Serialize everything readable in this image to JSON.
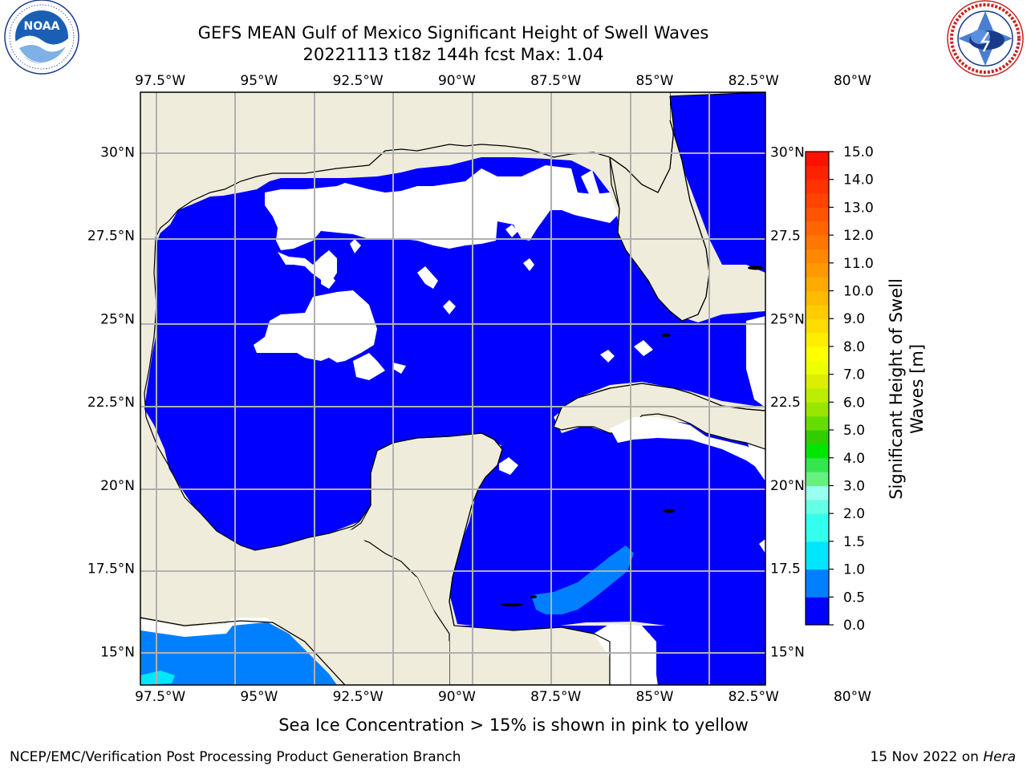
{
  "header": {
    "title_line1": "GEFS MEAN Gulf of Mexico Significant Height of Swell Waves",
    "title_line2": "20221113 t18z 144h fcst   Max: 1.04"
  },
  "logos": {
    "left": {
      "name": "noaa-logo",
      "text": "NOAA",
      "ring_text": "NATIONAL OCEANIC AND ATMOSPHERIC ADMINISTRATION · U.S. DEPARTMENT OF COMMERCE"
    },
    "right": {
      "name": "nws-logo",
      "ring_text": "NATIONAL WEATHER SERVICE"
    }
  },
  "chart_data": {
    "type": "heatmap",
    "title": "GEFS MEAN Gulf of Mexico Significant Height of Swell Waves",
    "subtitle": "20221113 t18z 144h fcst   Max: 1.04",
    "max_value": 1.04,
    "lon_range": [
      -98,
      -82.2
    ],
    "lat_range": [
      14,
      31.8
    ],
    "grid": true,
    "x_ticks": [
      "97.5°W",
      "95°W",
      "92.5°W",
      "90°W",
      "87.5°W",
      "85°W",
      "82.5°W",
      "80°W"
    ],
    "x_tick_values": [
      -97.5,
      -95,
      -92.5,
      -90,
      -87.5,
      -85,
      -82.5,
      -80
    ],
    "y_ticks_left": [
      "30°N",
      "27.5°N",
      "25°N",
      "22.5°N",
      "20°N",
      "17.5°N",
      "15°N"
    ],
    "y_ticks_right": [
      "30°N",
      "27.5",
      "25°N",
      "22.5",
      "20°N",
      "17.5",
      "15°N"
    ],
    "y_tick_values": [
      30,
      27.5,
      25,
      22.5,
      20,
      17.5,
      15
    ],
    "colorbar": {
      "label": "Significant Height of Swell Waves [m]",
      "label_line1": "Significant Height of Swell",
      "label_line2": "Waves [m]",
      "levels": [
        0.0,
        0.5,
        1.0,
        1.5,
        2.0,
        2.5,
        3.0,
        3.5,
        4.0,
        4.5,
        5.0,
        5.5,
        6.0,
        6.5,
        7.0,
        7.5,
        8.0,
        8.5,
        9.0,
        9.5,
        10.0,
        10.5,
        11.0,
        11.5,
        12.0,
        12.5,
        13.0,
        13.5,
        14.0,
        14.5,
        15.0
      ],
      "colors": [
        "#0000ff",
        "#0080ff",
        "#00e6ff",
        "#33ffee",
        "#66ffe6",
        "#99ffee",
        "#66f080",
        "#33e64d",
        "#00e600",
        "#33cc00",
        "#66dd00",
        "#99e600",
        "#bbee00",
        "#ddee00",
        "#eeff00",
        "#ffff00",
        "#ffee00",
        "#ffdd00",
        "#ffcc00",
        "#ffbb00",
        "#ffaa00",
        "#ff9900",
        "#ff8800",
        "#ff7700",
        "#ff6600",
        "#ff5500",
        "#ff4400",
        "#ff3300",
        "#ff2200",
        "#ff1100"
      ],
      "tick_labels": [
        "0.0",
        "0.5",
        "1.0",
        "1.5",
        "2.0",
        "3.0",
        "4.0",
        "5.0",
        "6.0",
        "7.0",
        "8.0",
        "9.0",
        "10.0",
        "11.0",
        "12.0",
        "13.0",
        "14.0",
        "15.0"
      ]
    },
    "field_regions": [
      {
        "band": "0.0-0.5",
        "color": "#0000ff",
        "description": "most of Gulf of Mexico and Caribbean"
      },
      {
        "band": "0.5-1.0",
        "color": "#0080ff",
        "description": "Gulf of Tehuantepec Pacific side and patch south of Cuba"
      },
      {
        "band": "1.0-1.5",
        "color": "#00e6ff",
        "description": "small patch near Pacific coast"
      }
    ]
  },
  "colors": {
    "land": "#efecdc",
    "ocean_low": "#0000ff",
    "ocean_mid": "#0080ff",
    "ocean_cyan": "#00e6ff",
    "missing": "#ffffff",
    "grid": "#b0b0b0"
  },
  "note": "Sea Ice Concentration > 15% is shown in pink to yellow",
  "footer": {
    "left": "NCEP/EMC/Verification Post Processing Product Generation Branch",
    "right_prefix": "15 Nov 2022 on ",
    "right_host": "Hera"
  }
}
